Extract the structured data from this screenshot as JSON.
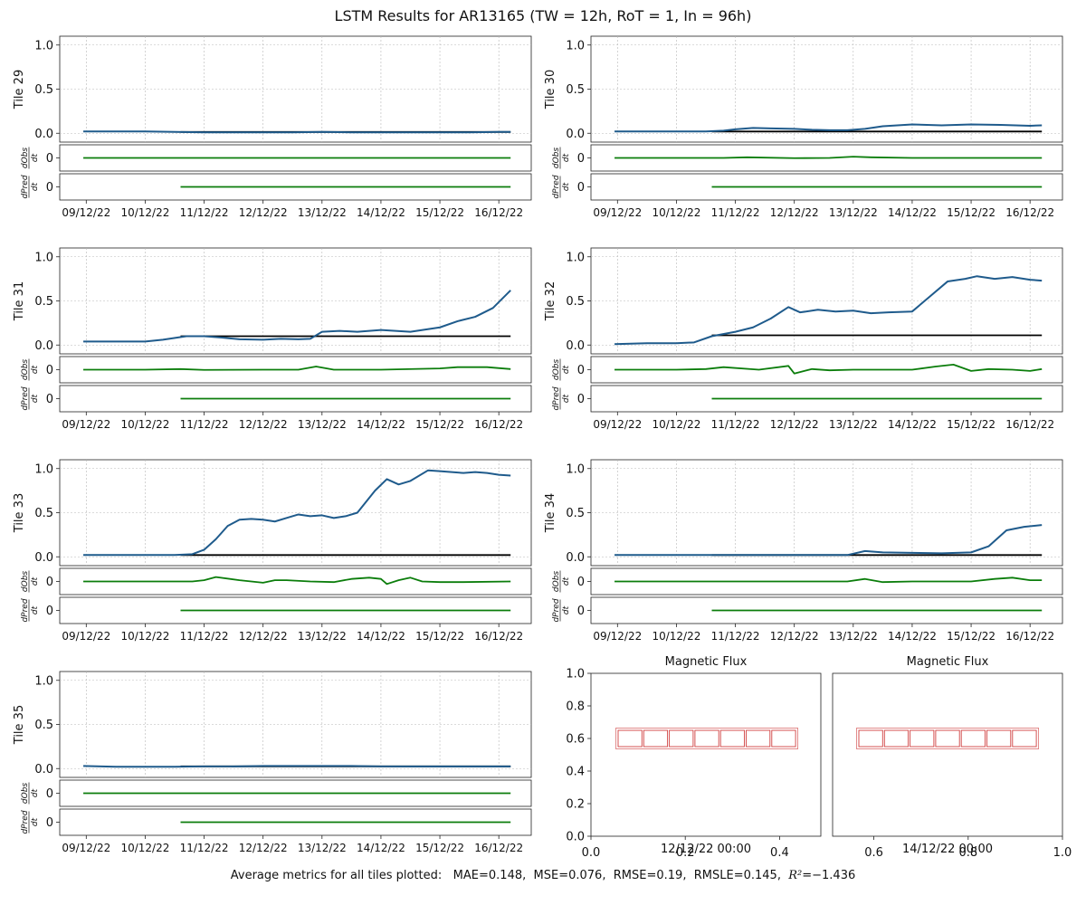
{
  "title": "LSTM Results for AR13165 (TW = 12h, RoT = 1, In = 96h)",
  "footer": {
    "prefix": "Average metrics for all tiles plotted:",
    "metrics": [
      {
        "name": "MAE",
        "value": "0.148"
      },
      {
        "name": "MSE",
        "value": "0.076"
      },
      {
        "name": "RMSE",
        "value": "0.19"
      },
      {
        "name": "RMSLE",
        "value": "0.145"
      },
      {
        "name": "R²",
        "value": "−1.436"
      }
    ]
  },
  "colors": {
    "observed": "#1f5b8c",
    "predicted": "#000000",
    "derivative": "#0b7d0b",
    "flux_box": "#d04040",
    "grid": "#b8b8b8"
  },
  "chart_data": [
    {
      "type": "line",
      "tile": "Tile 29",
      "ylabel": "Tile 29",
      "deriv_labels": {
        "obs": "dObs/dt",
        "pred": "dPred/dt"
      },
      "x_ticks": [
        "09/12/22",
        "10/12/22",
        "11/12/22",
        "12/12/22",
        "13/12/22",
        "14/12/22",
        "15/12/22",
        "16/12/22"
      ],
      "ylim": [
        -0.1,
        1.1
      ],
      "y_ticks": [
        0.0,
        0.5,
        1.0
      ],
      "grid": true,
      "observed": {
        "x": [
          -0.05,
          0.5,
          1.0,
          1.5,
          2.0,
          2.5,
          3.0,
          3.5,
          4.0,
          4.5,
          5.0,
          5.5,
          6.0,
          6.5,
          7.0,
          7.2
        ],
        "y": [
          0.02,
          0.02,
          0.02,
          0.015,
          0.01,
          0.01,
          0.01,
          0.01,
          0.015,
          0.01,
          0.01,
          0.01,
          0.01,
          0.01,
          0.015,
          0.015
        ]
      },
      "predicted": {
        "x": [
          1.6,
          7.2
        ],
        "y": [
          0.015,
          0.015
        ]
      },
      "dobs": {
        "x": [
          -0.05,
          1.0,
          2.0,
          3.0,
          4.0,
          5.0,
          6.0,
          7.2
        ],
        "y": [
          0,
          0,
          0,
          0,
          0,
          0,
          0,
          0
        ]
      },
      "dpred": {
        "x": [
          1.6,
          7.2
        ],
        "y": [
          0,
          0
        ]
      }
    },
    {
      "type": "line",
      "tile": "Tile 30",
      "ylabel": "Tile 30",
      "deriv_labels": {
        "obs": "dObs/dt",
        "pred": "dPred/dt"
      },
      "x_ticks": [
        "09/12/22",
        "10/12/22",
        "11/12/22",
        "12/12/22",
        "13/12/22",
        "14/12/22",
        "15/12/22",
        "16/12/22"
      ],
      "ylim": [
        -0.1,
        1.1
      ],
      "y_ticks": [
        0.0,
        0.5,
        1.0
      ],
      "grid": true,
      "observed": {
        "x": [
          -0.05,
          0.5,
          1.0,
          1.5,
          1.8,
          2.0,
          2.3,
          2.6,
          3.0,
          3.3,
          3.6,
          3.9,
          4.2,
          4.5,
          5.0,
          5.5,
          6.0,
          6.5,
          7.0,
          7.2
        ],
        "y": [
          0.02,
          0.02,
          0.02,
          0.02,
          0.03,
          0.045,
          0.06,
          0.055,
          0.05,
          0.04,
          0.035,
          0.035,
          0.05,
          0.08,
          0.1,
          0.09,
          0.1,
          0.095,
          0.085,
          0.09
        ]
      },
      "predicted": {
        "x": [
          1.6,
          7.2
        ],
        "y": [
          0.02,
          0.02
        ]
      },
      "dobs": {
        "x": [
          -0.05,
          1.0,
          1.8,
          2.2,
          3.0,
          3.6,
          4.0,
          4.3,
          5.0,
          6.0,
          7.2
        ],
        "y": [
          0,
          0,
          0,
          0.05,
          -0.02,
          0,
          0.1,
          0.05,
          0,
          0,
          0
        ]
      },
      "dpred": {
        "x": [
          1.6,
          7.2
        ],
        "y": [
          0,
          0
        ]
      }
    },
    {
      "type": "line",
      "tile": "Tile 31",
      "ylabel": "Tile 31",
      "deriv_labels": {
        "obs": "dObs/dt",
        "pred": "dPred/dt"
      },
      "x_ticks": [
        "09/12/22",
        "10/12/22",
        "11/12/22",
        "12/12/22",
        "13/12/22",
        "14/12/22",
        "15/12/22",
        "16/12/22"
      ],
      "ylim": [
        -0.1,
        1.1
      ],
      "y_ticks": [
        0.0,
        0.5,
        1.0
      ],
      "grid": true,
      "observed": {
        "x": [
          -0.05,
          0.5,
          1.0,
          1.3,
          1.7,
          2.0,
          2.3,
          2.6,
          3.0,
          3.3,
          3.6,
          3.8,
          4.0,
          4.3,
          4.6,
          5.0,
          5.5,
          6.0,
          6.3,
          6.6,
          6.9,
          7.2
        ],
        "y": [
          0.04,
          0.04,
          0.04,
          0.06,
          0.1,
          0.1,
          0.085,
          0.065,
          0.06,
          0.07,
          0.065,
          0.07,
          0.15,
          0.16,
          0.15,
          0.17,
          0.15,
          0.2,
          0.27,
          0.32,
          0.42,
          0.62
        ]
      },
      "predicted": {
        "x": [
          1.6,
          7.2
        ],
        "y": [
          0.1,
          0.1
        ]
      },
      "dobs": {
        "x": [
          -0.05,
          1.0,
          1.6,
          2.0,
          3.0,
          3.6,
          3.9,
          4.2,
          5.0,
          6.0,
          6.3,
          6.8,
          7.2
        ],
        "y": [
          0,
          0,
          0.05,
          -0.02,
          0,
          0,
          0.25,
          0,
          0,
          0.1,
          0.2,
          0.2,
          0.05
        ]
      },
      "dpred": {
        "x": [
          1.6,
          7.2
        ],
        "y": [
          0,
          0
        ]
      }
    },
    {
      "type": "line",
      "tile": "Tile 32",
      "ylabel": "Tile 32",
      "deriv_labels": {
        "obs": "dObs/dt",
        "pred": "dPred/dt"
      },
      "x_ticks": [
        "09/12/22",
        "10/12/22",
        "11/12/22",
        "12/12/22",
        "13/12/22",
        "14/12/22",
        "15/12/22",
        "16/12/22"
      ],
      "ylim": [
        -0.1,
        1.1
      ],
      "y_ticks": [
        0.0,
        0.5,
        1.0
      ],
      "grid": true,
      "observed": {
        "x": [
          -0.05,
          0.5,
          1.0,
          1.3,
          1.6,
          2.0,
          2.3,
          2.6,
          2.9,
          3.1,
          3.4,
          3.7,
          4.0,
          4.3,
          4.6,
          5.0,
          5.3,
          5.6,
          5.9,
          6.1,
          6.4,
          6.7,
          7.0,
          7.2
        ],
        "y": [
          0.01,
          0.02,
          0.02,
          0.03,
          0.1,
          0.15,
          0.2,
          0.3,
          0.43,
          0.37,
          0.4,
          0.38,
          0.39,
          0.36,
          0.37,
          0.38,
          0.55,
          0.72,
          0.75,
          0.78,
          0.75,
          0.77,
          0.74,
          0.73
        ]
      },
      "predicted": {
        "x": [
          1.6,
          7.2
        ],
        "y": [
          0.11,
          0.11
        ]
      },
      "dobs": {
        "x": [
          -0.05,
          1.0,
          1.5,
          1.8,
          2.4,
          2.9,
          3.0,
          3.3,
          3.6,
          4.0,
          4.5,
          5.0,
          5.4,
          5.7,
          6.0,
          6.3,
          6.7,
          7.0,
          7.2
        ],
        "y": [
          0,
          0,
          0.05,
          0.2,
          0,
          0.3,
          -0.3,
          0.05,
          -0.05,
          0,
          0,
          0,
          0.25,
          0.4,
          -0.1,
          0.05,
          0,
          -0.1,
          0.05
        ]
      },
      "dpred": {
        "x": [
          1.6,
          7.2
        ],
        "y": [
          0,
          0
        ]
      }
    },
    {
      "type": "line",
      "tile": "Tile 33",
      "ylabel": "Tile 33",
      "deriv_labels": {
        "obs": "dObs/dt",
        "pred": "dPred/dt"
      },
      "x_ticks": [
        "09/12/22",
        "10/12/22",
        "11/12/22",
        "12/12/22",
        "13/12/22",
        "14/12/22",
        "15/12/22",
        "16/12/22"
      ],
      "ylim": [
        -0.1,
        1.1
      ],
      "y_ticks": [
        0.0,
        0.5,
        1.0
      ],
      "grid": true,
      "observed": {
        "x": [
          -0.05,
          0.5,
          1.0,
          1.5,
          1.8,
          2.0,
          2.2,
          2.4,
          2.6,
          2.8,
          3.0,
          3.2,
          3.4,
          3.6,
          3.8,
          4.0,
          4.2,
          4.4,
          4.6,
          4.9,
          5.1,
          5.3,
          5.5,
          5.8,
          6.0,
          6.2,
          6.4,
          6.6,
          6.8,
          7.0,
          7.2
        ],
        "y": [
          0.02,
          0.02,
          0.02,
          0.02,
          0.03,
          0.08,
          0.2,
          0.35,
          0.42,
          0.43,
          0.42,
          0.4,
          0.44,
          0.48,
          0.46,
          0.47,
          0.44,
          0.46,
          0.5,
          0.75,
          0.88,
          0.82,
          0.86,
          0.98,
          0.97,
          0.96,
          0.95,
          0.96,
          0.95,
          0.93,
          0.92
        ]
      },
      "predicted": {
        "x": [
          1.6,
          7.2
        ],
        "y": [
          0.02,
          0.02
        ]
      },
      "dobs": {
        "x": [
          -0.05,
          1.0,
          1.8,
          2.0,
          2.2,
          2.6,
          3.0,
          3.2,
          3.4,
          3.8,
          4.2,
          4.5,
          4.8,
          5.0,
          5.1,
          5.3,
          5.5,
          5.7,
          6.0,
          6.4,
          7.2
        ],
        "y": [
          0,
          0,
          0,
          0.1,
          0.35,
          0.1,
          -0.1,
          0.1,
          0.1,
          0,
          -0.05,
          0.2,
          0.3,
          0.2,
          -0.2,
          0.1,
          0.3,
          0,
          -0.05,
          -0.05,
          0
        ]
      },
      "dpred": {
        "x": [
          1.6,
          7.2
        ],
        "y": [
          0,
          0
        ]
      }
    },
    {
      "type": "line",
      "tile": "Tile 34",
      "ylabel": "Tile 34",
      "deriv_labels": {
        "obs": "dObs/dt",
        "pred": "dPred/dt"
      },
      "x_ticks": [
        "09/12/22",
        "10/12/22",
        "11/12/22",
        "12/12/22",
        "13/12/22",
        "14/12/22",
        "15/12/22",
        "16/12/22"
      ],
      "ylim": [
        -0.1,
        1.1
      ],
      "y_ticks": [
        0.0,
        0.5,
        1.0
      ],
      "grid": true,
      "observed": {
        "x": [
          -0.05,
          0.5,
          1.0,
          1.5,
          2.0,
          2.5,
          3.0,
          3.5,
          3.9,
          4.2,
          4.5,
          5.0,
          5.5,
          6.0,
          6.3,
          6.6,
          6.9,
          7.2
        ],
        "y": [
          0.02,
          0.02,
          0.02,
          0.02,
          0.02,
          0.02,
          0.02,
          0.02,
          0.02,
          0.065,
          0.05,
          0.045,
          0.04,
          0.05,
          0.12,
          0.3,
          0.34,
          0.36
        ]
      },
      "predicted": {
        "x": [
          1.6,
          7.2
        ],
        "y": [
          0.02,
          0.02
        ]
      },
      "dobs": {
        "x": [
          -0.05,
          1.0,
          2.0,
          3.0,
          3.9,
          4.2,
          4.5,
          5.0,
          6.0,
          6.4,
          6.7,
          7.0,
          7.2
        ],
        "y": [
          0,
          0,
          0,
          0,
          0,
          0.2,
          -0.05,
          0,
          0,
          0.2,
          0.3,
          0.1,
          0.1
        ]
      },
      "dpred": {
        "x": [
          1.6,
          7.2
        ],
        "y": [
          0,
          0
        ]
      }
    },
    {
      "type": "line",
      "tile": "Tile 35",
      "ylabel": "Tile 35",
      "deriv_labels": {
        "obs": "dObs/dt",
        "pred": "dPred/dt"
      },
      "x_ticks": [
        "09/12/22",
        "10/12/22",
        "11/12/22",
        "12/12/22",
        "13/12/22",
        "14/12/22",
        "15/12/22",
        "16/12/22"
      ],
      "ylim": [
        -0.1,
        1.1
      ],
      "y_ticks": [
        0.0,
        0.5,
        1.0
      ],
      "grid": true,
      "observed": {
        "x": [
          -0.05,
          0.5,
          1.0,
          1.5,
          2.0,
          2.5,
          3.0,
          3.5,
          4.0,
          4.5,
          5.0,
          5.5,
          6.0,
          6.5,
          7.0,
          7.2
        ],
        "y": [
          0.03,
          0.02,
          0.02,
          0.02,
          0.025,
          0.025,
          0.03,
          0.03,
          0.03,
          0.03,
          0.025,
          0.025,
          0.025,
          0.025,
          0.025,
          0.025
        ]
      },
      "predicted": {
        "x": [
          1.6,
          7.2
        ],
        "y": [
          0.025,
          0.025
        ]
      },
      "dobs": {
        "x": [
          -0.05,
          1.0,
          2.0,
          3.0,
          4.0,
          5.0,
          6.0,
          7.2
        ],
        "y": [
          0,
          0,
          0,
          0,
          0,
          0,
          0,
          0
        ]
      },
      "dpred": {
        "x": [
          1.6,
          7.2
        ],
        "y": [
          0,
          0
        ]
      }
    },
    {
      "type": "table",
      "title_left": "Magnetic Flux",
      "title_right": "Magnetic Flux",
      "xlim": [
        0.0,
        1.0
      ],
      "ylim": [
        0.0,
        1.0
      ],
      "x_ticks": [
        "0.0",
        "0.2",
        "0.4",
        "0.6",
        "0.8",
        "1.0"
      ],
      "y_ticks": [
        "0.0",
        "0.2",
        "0.4",
        "0.6",
        "0.8",
        "1.0"
      ],
      "time_left": "12/12/22 00:00",
      "time_right": "14/12/22 00:00",
      "cells_left": 7,
      "cells_right": 7
    }
  ]
}
